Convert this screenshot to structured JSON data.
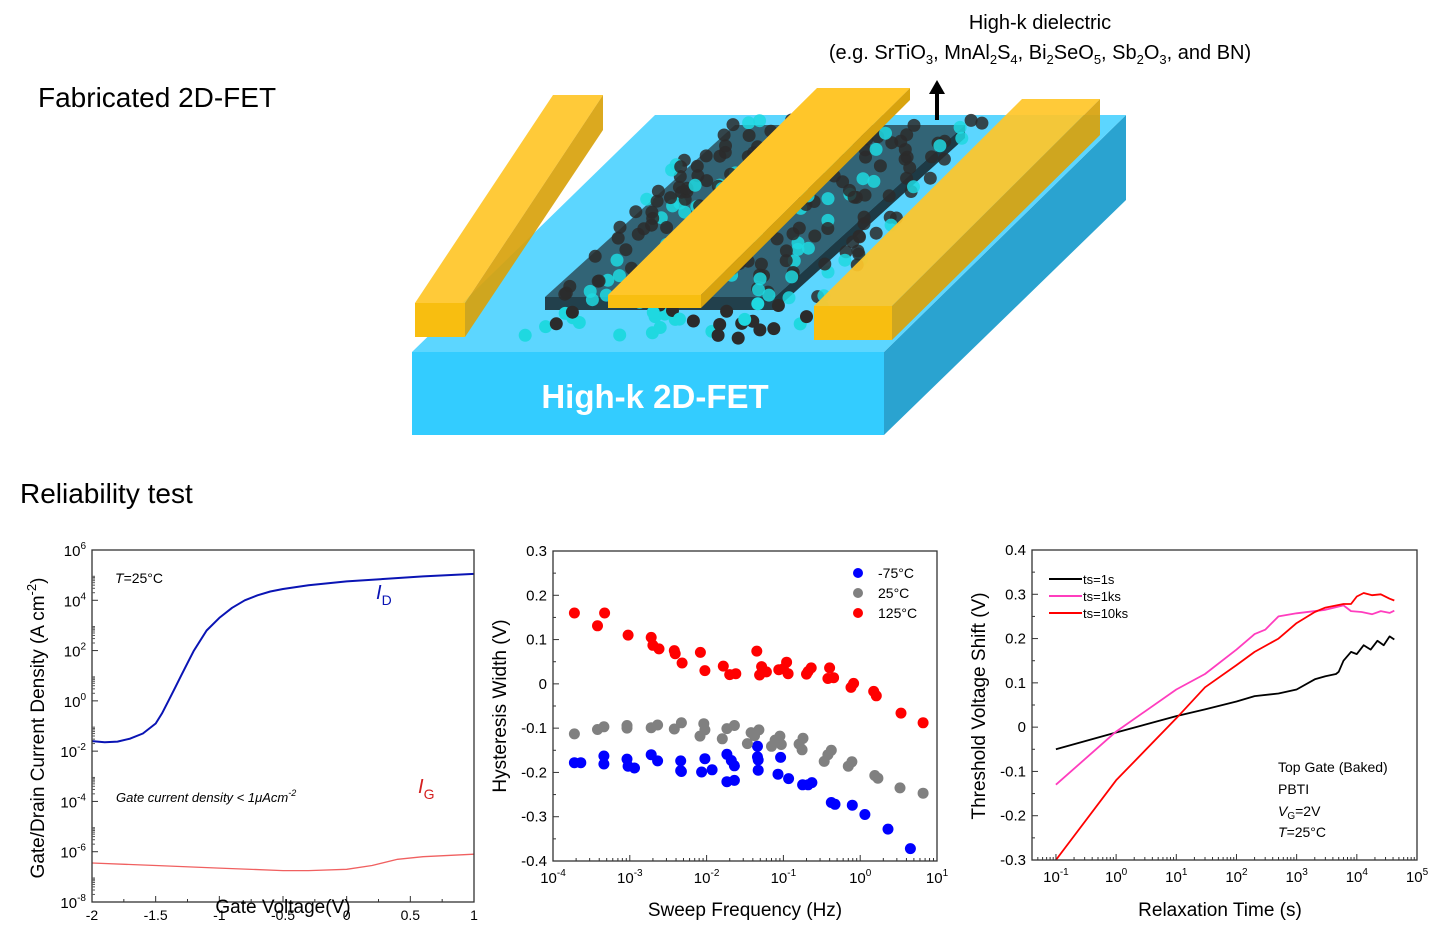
{
  "sections": {
    "fabricated_title": "Fabricated 2D-FET",
    "reliability_title": "Reliability test"
  },
  "device": {
    "annotation_line1": "High-k dielectric",
    "annotation_line2_parts": [
      {
        "t": "(e.g. SrTiO"
      },
      {
        "sub": "3"
      },
      {
        "t": ", MnAl"
      },
      {
        "sub": "2"
      },
      {
        "t": "S"
      },
      {
        "sub": "4"
      },
      {
        "t": ", Bi"
      },
      {
        "sub": "2"
      },
      {
        "t": "SeO"
      },
      {
        "sub": "5"
      },
      {
        "t": ", Sb"
      },
      {
        "sub": "2"
      },
      {
        "t": "O"
      },
      {
        "sub": "3"
      },
      {
        "t": ", and BN)"
      }
    ],
    "substrate_label": "High-k 2D-FET",
    "colors": {
      "substrate_front": "#33CCFF",
      "substrate_top": "#5CD6FF",
      "substrate_side": "#2AA3D0",
      "electrode": "#FFC62A",
      "electrode_side": "#D8A30E",
      "dielectric": "#2F5A6A",
      "atom_dark": "#2B2B2B",
      "atom_cyan": "#1FD8E0"
    }
  },
  "chart_data": [
    {
      "type": "line",
      "title": "",
      "xlabel": "Gate Voltage(V)",
      "ylabel": "Gate/Drain Current Density (A cm-2)",
      "yscale": "log",
      "xlim": [
        -2,
        1
      ],
      "ylim": [
        1e-08,
        1000000.0
      ],
      "xticks": [
        "-2",
        "-1.5",
        "-1",
        "-0.5",
        "0",
        "0.5",
        "1"
      ],
      "xtick_values": [
        -2,
        -1.5,
        -1,
        -0.5,
        0,
        0.5,
        1
      ],
      "yticks_exp": [
        -8,
        -6,
        -4,
        -2,
        0,
        2,
        4,
        6
      ],
      "annotations": {
        "temperature": "T=25°C",
        "gate_note": "Gate current density < 1μAcm-2",
        "id_label": "I",
        "id_sub": "D",
        "ig_label": "I",
        "ig_sub": "G"
      },
      "series": [
        {
          "name": "I_D",
          "color": "#0A14B4",
          "x": [
            -2,
            -1.9,
            -1.8,
            -1.7,
            -1.6,
            -1.5,
            -1.45,
            -1.4,
            -1.35,
            -1.3,
            -1.25,
            -1.2,
            -1.1,
            -1.0,
            -0.9,
            -0.8,
            -0.7,
            -0.6,
            -0.5,
            -0.3,
            0,
            0.3,
            0.6,
            1.0
          ],
          "log10y": [
            -1.6,
            -1.65,
            -1.62,
            -1.5,
            -1.3,
            -0.9,
            -0.5,
            0.0,
            0.5,
            1.0,
            1.5,
            2.0,
            2.8,
            3.3,
            3.7,
            4.0,
            4.2,
            4.35,
            4.45,
            4.6,
            4.75,
            4.85,
            4.95,
            5.05
          ]
        },
        {
          "name": "I_G",
          "color": "#F06060",
          "x": [
            -2,
            -1.5,
            -1.0,
            -0.5,
            -0.3,
            0,
            0.2,
            0.4,
            0.6,
            1.0
          ],
          "log10y": [
            -6.45,
            -6.55,
            -6.65,
            -6.75,
            -6.75,
            -6.7,
            -6.55,
            -6.3,
            -6.2,
            -6.1
          ]
        }
      ]
    },
    {
      "type": "scatter",
      "title": "",
      "xlabel": "Sweep Frequency (Hz)",
      "ylabel": "Hysteresis Width (V)",
      "xscale": "log",
      "xlim": [
        0.0001,
        10.0
      ],
      "ylim": [
        -0.4,
        0.3
      ],
      "xticks_exp": [
        -4,
        -3,
        -2,
        -1,
        0,
        1
      ],
      "yticks": [
        "0.3",
        "0.2",
        "0.1",
        "0",
        "-0.1",
        "-0.2",
        "-0.3",
        "-0.4"
      ],
      "ytick_values": [
        0.3,
        0.2,
        0.1,
        0,
        -0.1,
        -0.2,
        -0.3,
        -0.4
      ],
      "legend_position": "top-right",
      "series": [
        {
          "name": "-75°C",
          "color": "#0000FF",
          "points": [
            [
              0.00019,
              -0.178
            ],
            [
              0.00023,
              -0.178
            ],
            [
              0.00046,
              -0.163
            ],
            [
              0.00046,
              -0.181
            ],
            [
              0.00092,
              -0.17
            ],
            [
              0.00095,
              -0.186
            ],
            [
              0.00115,
              -0.19
            ],
            [
              0.0019,
              -0.16
            ],
            [
              0.0023,
              -0.174
            ],
            [
              0.0046,
              -0.174
            ],
            [
              0.0046,
              -0.196
            ],
            [
              0.0047,
              -0.198
            ],
            [
              0.0086,
              -0.199
            ],
            [
              0.0095,
              -0.169
            ],
            [
              0.0118,
              -0.194
            ],
            [
              0.0184,
              -0.159
            ],
            [
              0.0184,
              -0.221
            ],
            [
              0.021,
              -0.173
            ],
            [
              0.023,
              -0.185
            ],
            [
              0.023,
              -0.218
            ],
            [
              0.046,
              -0.141
            ],
            [
              0.046,
              -0.165
            ],
            [
              0.047,
              -0.172
            ],
            [
              0.047,
              -0.195
            ],
            [
              0.085,
              -0.204
            ],
            [
              0.092,
              -0.166
            ],
            [
              0.117,
              -0.214
            ],
            [
              0.178,
              -0.228
            ],
            [
              0.21,
              -0.228
            ],
            [
              0.235,
              -0.223
            ],
            [
              0.42,
              -0.268
            ],
            [
              0.47,
              -0.272
            ],
            [
              0.79,
              -0.274
            ],
            [
              1.15,
              -0.295
            ],
            [
              2.3,
              -0.328
            ],
            [
              4.5,
              -0.372
            ]
          ]
        },
        {
          "name": "25°C",
          "color": "#808080",
          "points": [
            [
              0.00019,
              -0.113
            ],
            [
              0.00038,
              -0.103
            ],
            [
              0.00046,
              -0.097
            ],
            [
              0.00092,
              -0.094
            ],
            [
              0.00092,
              -0.1
            ],
            [
              0.0019,
              -0.099
            ],
            [
              0.0023,
              -0.093
            ],
            [
              0.0038,
              -0.102
            ],
            [
              0.0047,
              -0.088
            ],
            [
              0.0082,
              -0.118
            ],
            [
              0.0092,
              -0.09
            ],
            [
              0.0095,
              -0.104
            ],
            [
              0.016,
              -0.124
            ],
            [
              0.0184,
              -0.101
            ],
            [
              0.023,
              -0.094
            ],
            [
              0.034,
              -0.135
            ],
            [
              0.038,
              -0.11
            ],
            [
              0.042,
              -0.117
            ],
            [
              0.048,
              -0.104
            ],
            [
              0.07,
              -0.141
            ],
            [
              0.078,
              -0.127
            ],
            [
              0.09,
              -0.118
            ],
            [
              0.094,
              -0.137
            ],
            [
              0.16,
              -0.136
            ],
            [
              0.175,
              -0.149
            ],
            [
              0.18,
              -0.123
            ],
            [
              0.34,
              -0.175
            ],
            [
              0.38,
              -0.16
            ],
            [
              0.42,
              -0.15
            ],
            [
              0.7,
              -0.186
            ],
            [
              0.78,
              -0.176
            ],
            [
              1.55,
              -0.207
            ],
            [
              1.7,
              -0.213
            ],
            [
              3.3,
              -0.235
            ],
            [
              6.6,
              -0.247
            ]
          ]
        },
        {
          "name": "125°C",
          "color": "#FF0000",
          "points": [
            [
              0.00019,
              0.16
            ],
            [
              0.00038,
              0.131
            ],
            [
              0.00047,
              0.16
            ],
            [
              0.00095,
              0.11
            ],
            [
              0.0019,
              0.105
            ],
            [
              0.002,
              0.087
            ],
            [
              0.0024,
              0.079
            ],
            [
              0.0038,
              0.075
            ],
            [
              0.0039,
              0.068
            ],
            [
              0.0048,
              0.047
            ],
            [
              0.0083,
              0.071
            ],
            [
              0.0095,
              0.03
            ],
            [
              0.0165,
              0.04
            ],
            [
              0.02,
              0.021
            ],
            [
              0.024,
              0.023
            ],
            [
              0.045,
              0.074
            ],
            [
              0.049,
              0.02
            ],
            [
              0.052,
              0.039
            ],
            [
              0.055,
              0.03
            ],
            [
              0.06,
              0.027
            ],
            [
              0.087,
              0.032
            ],
            [
              0.1,
              0.034
            ],
            [
              0.11,
              0.049
            ],
            [
              0.115,
              0.023
            ],
            [
              0.2,
              0.022
            ],
            [
              0.21,
              0.028
            ],
            [
              0.23,
              0.036
            ],
            [
              0.38,
              0.012
            ],
            [
              0.4,
              0.036
            ],
            [
              0.45,
              0.014
            ],
            [
              0.76,
              -0.008
            ],
            [
              0.82,
              0.001
            ],
            [
              1.5,
              -0.017
            ],
            [
              1.62,
              -0.027
            ],
            [
              3.4,
              -0.066
            ],
            [
              6.6,
              -0.088
            ]
          ]
        }
      ]
    },
    {
      "type": "line",
      "title": "",
      "xlabel": "Relaxation Time (s)",
      "ylabel": "Threshold Voltage Shift (V)",
      "xscale": "log",
      "xlim": [
        0.04,
        100000.0
      ],
      "ylim": [
        -0.3,
        0.4
      ],
      "xticks_exp": [
        -1,
        0,
        1,
        2,
        3,
        4,
        5
      ],
      "yticks": [
        "0.4",
        "0.3",
        "0.2",
        "0.1",
        "0",
        "-0.1",
        "-0.2",
        "-0.3"
      ],
      "ytick_values": [
        0.4,
        0.3,
        0.2,
        0.1,
        0,
        -0.1,
        -0.2,
        -0.3
      ],
      "legend_position": "top-left",
      "annotations": [
        "Top Gate (Baked)",
        "PBTI",
        "VG=2V",
        "T=25°C"
      ],
      "annotation_parts": {
        "line1": "Top Gate (Baked)",
        "line2": "PBTI",
        "vg_v": "V",
        "vg_sub": "G",
        "vg_rest": "=2V",
        "t_t": "T",
        "t_rest": "=25°C"
      },
      "series": [
        {
          "name": "ts=1s",
          "color": "#000000",
          "x": [
            0.1,
            1,
            10,
            30,
            100,
            200,
            500,
            1000,
            2000,
            3000,
            4500,
            5000,
            6000,
            8000,
            10000,
            13000,
            17000,
            22000,
            28000,
            35000,
            42000
          ],
          "y": [
            -0.05,
            -0.012,
            0.025,
            0.04,
            0.058,
            0.07,
            0.076,
            0.085,
            0.108,
            0.115,
            0.12,
            0.125,
            0.15,
            0.17,
            0.165,
            0.185,
            0.175,
            0.195,
            0.185,
            0.205,
            0.198
          ]
        },
        {
          "name": "ts=1ks",
          "color": "#FF3DBE",
          "x": [
            0.1,
            1,
            10,
            30,
            100,
            200,
            300,
            500,
            1000,
            3000,
            6000,
            8000,
            12000,
            18000,
            25000,
            35000,
            42000
          ],
          "y": [
            -0.13,
            -0.01,
            0.085,
            0.12,
            0.175,
            0.21,
            0.22,
            0.25,
            0.257,
            0.265,
            0.275,
            0.262,
            0.26,
            0.255,
            0.262,
            0.258,
            0.263
          ]
        },
        {
          "name": "ts=10ks",
          "color": "#FF0000",
          "x": [
            0.1,
            1,
            10,
            30,
            100,
            200,
            500,
            1000,
            2000,
            3000,
            6000,
            8000,
            10000,
            13000,
            18000,
            25000,
            35000,
            42000
          ],
          "y": [
            -0.3,
            -0.12,
            0.02,
            0.09,
            0.14,
            0.17,
            0.2,
            0.235,
            0.26,
            0.27,
            0.278,
            0.278,
            0.295,
            0.303,
            0.298,
            0.3,
            0.29,
            0.286
          ]
        }
      ]
    }
  ]
}
